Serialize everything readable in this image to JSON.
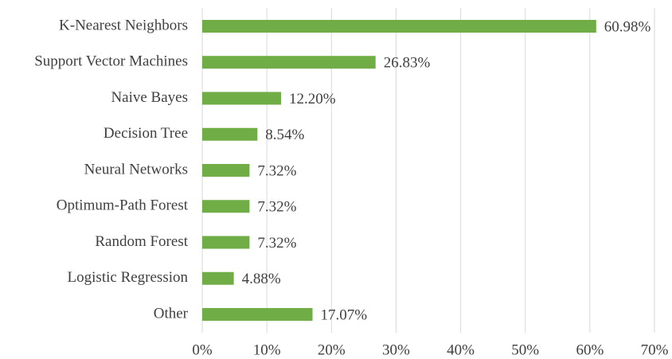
{
  "chart_data": {
    "type": "bar",
    "orientation": "horizontal",
    "categories": [
      "K-Nearest Neighbors",
      "Support Vector Machines",
      "Naive Bayes",
      "Decision Tree",
      "Neural Networks",
      "Optimum-Path Forest",
      "Random Forest",
      "Logistic Regression",
      "Other"
    ],
    "values": [
      60.98,
      26.83,
      12.2,
      8.54,
      7.32,
      7.32,
      7.32,
      4.88,
      17.07
    ],
    "value_labels": [
      "60.98%",
      "26.83%",
      "12.20%",
      "8.54%",
      "7.32%",
      "7.32%",
      "7.32%",
      "4.88%",
      "17.07%"
    ],
    "color": "#70ad47",
    "xlim": [
      0,
      70
    ],
    "xticks": [
      {
        "value": 0,
        "label": "0%"
      },
      {
        "value": 10,
        "label": "10%"
      },
      {
        "value": 20,
        "label": "20%"
      },
      {
        "value": 30,
        "label": "30%"
      },
      {
        "value": 40,
        "label": "40%"
      },
      {
        "value": 50,
        "label": "50%"
      },
      {
        "value": 60,
        "label": "60%"
      },
      {
        "value": 70,
        "label": "70%"
      }
    ],
    "grid": true
  }
}
